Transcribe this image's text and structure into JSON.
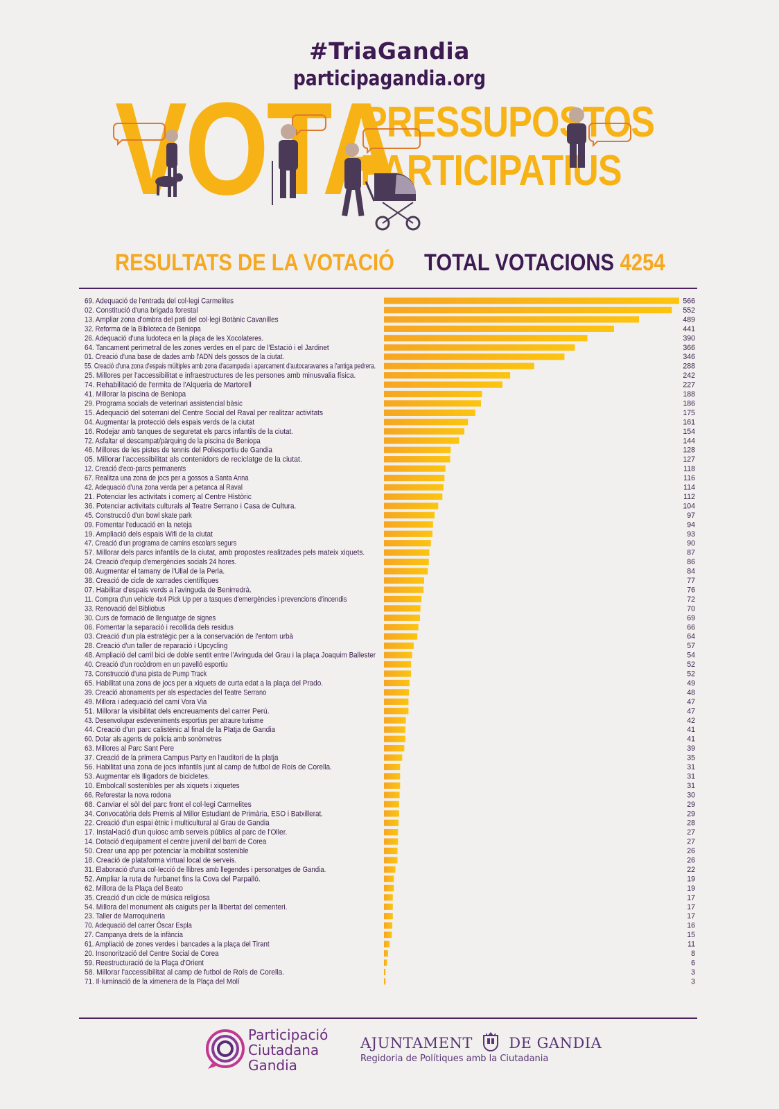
{
  "header": {
    "hashtag": "#TriaGandia",
    "website": "participagandia.org",
    "vota": "VOTA",
    "pp_line1": "PRESSUPOSTOS",
    "pp_line2": "PARTICIPATIUS"
  },
  "results": {
    "title": "RESULTATS DE LA VOTACIÓ",
    "total_label": "TOTAL VOTACIONS",
    "total_value": "4254"
  },
  "colors": {
    "bar_start": "#f6a623",
    "bar_end": "#fcc40f",
    "text_dark": "#3d1a52",
    "accent": "#f7b216"
  },
  "chart_data": {
    "type": "bar",
    "orientation": "horizontal",
    "xlim": [
      0,
      566
    ],
    "grid": false,
    "categories": [
      "69. Adequació de l'entrada del col·legi Carmelites",
      "02. Constitució d'una brigada forestal",
      "13. Ampliar zona d'ombra del pati del col·legi Botànic Cavanilles",
      "32. Reforma de la Biblioteca de Beniopa",
      "26. Adequació d'una ludoteca en la plaça de les Xocolateres.",
      "64. Tancament perimetral de les zones verdes en el parc de l'Estació i el Jardinet",
      "01. Creació d'una base de dades amb l'ADN dels gossos de la ciutat.",
      "55. Creació d'una zona d'espais múltiples amb zona d'acampada i aparcament d'autocaravanes a l'antiga pedrera.",
      "25. Millores per l'accessibilitat e infraestructures de les persones amb minusvalia física.",
      "74. Rehabilitació de l'ermita de l'Alqueria de Martorell",
      "41. Millorar la piscina de Beniopa",
      "29. Programa socials de veterinari assistencial bàsic",
      "15. Adequació del soterrani del Centre Social del Raval per realitzar activitats",
      "04. Augmentar la protecció dels espais verds de la ciutat",
      "16. Rodejar amb tanques de seguretat els parcs infantils de la ciutat.",
      "72. Asfaltar el descampat/pàrquing de la piscina de Beniopa",
      "46. Millores de les pistes de tennis del Poliesportiu de Gandia",
      "05. Millorar l'accessibilitat als contenidors de reciclatge de la ciutat.",
      "12. Creació d'eco-parcs permanents",
      "67. Realitza una zona de jocs per a gossos a Santa Anna",
      "42. Adequació d'una zona verda per a petanca al Raval",
      "21. Potenciar les activitats i comerç al Centre Històric",
      "36. Potenciar activitats culturals al Teatre Serrano i Casa de Cultura.",
      "45. Construcció d'un bowl skate park",
      "09. Fomentar l'educació en la neteja",
      "19. Ampliació dels espais Wifi de la ciutat",
      "47. Creació d'un programa de camins escolars segurs",
      "57. Millorar dels parcs infantils de la ciutat, amb propostes realitzades pels mateix xiquets.",
      "24. Creació d'equip d'emergències socials 24 hores.",
      "08. Augmentar el tamany de l'Ullal de la Perla.",
      "38. Creació de cicle de xarrades científiques",
      "07. Habilitar d'espais verds a l'avinguda de Benirredrà.",
      "11. Compra d'un vehicle 4x4 Pick Up per a tasques d'emergències i prevencions d'incendis",
      "33. Renovació del Bibliobus",
      "30. Curs de formació de llenguatge de signes",
      "06. Fomentar la separació i recollida dels residus",
      "03. Creació d'un pla estratègic per a la conservación de l'entorn urbà",
      "28. Creació d'un taller de reparació i Upcycling",
      "48. Ampliació del carril bici de doble sentit entre l'Avinguda del Grau i la plaça Joaquim Ballester",
      "40. Creació d'un rocòdrom en un pavelló esportiu",
      "73. Construcció d'una pista de Pump Track",
      "65. Habilitat una zona de jocs per a xiquets de curta edat a la plaça del Prado.",
      "39. Creació abonaments per als espectacles del Teatre Serrano",
      "49. Millora i adequació del camí Vora Via",
      "51. Millorar la visibilitat dels encreuaments del carrer Perú.",
      "43. Desenvolupar esdeveniments esportius per atraure turisme",
      "44. Creació d'un parc calistènic al final de la Platja de Gandia",
      "60. Dotar als agents de policia amb sonòmetres",
      "63. Millores al Parc Sant Pere",
      "37. Creació de la primera Campus Party en l'auditori de la platja",
      "56. Habilitat una zona de jocs infantils junt al camp de futbol de Roís de Corella.",
      "53. Augmentar els lligadors de bicicletes.",
      "10. Embolcall sostenibles per als xiquets i xiquetes",
      "66. Reforestar la nova rodona",
      "68. Canviar el sòl del parc front el col·legi Carmelites",
      "34. Convocatòria dels Premis al Millor Estudiant de Primària, ESO i Batxillerat.",
      "22. Creació d'un espai ètnic i multicultural al Grau de Gandia",
      "17. Instal•lació d'un quiosc amb serveis públics al parc de l'Oller.",
      "14. Dotació d'equipament el centre juvenil del barri de Corea",
      "50. Crear una app per potenciar la mobilitat sostenible",
      "18. Creació de plataforma virtual local de serveis.",
      "31. Elaboració d'una col·lecció de llibres amb llegendes i personatges de Gandia.",
      "52. Ampliar la ruta de l'urbanet fins la Cova del Parpalló.",
      "62. Millora de la Plaça del Beato",
      "35. Creació d'un cicle de música religiosa",
      "54. Millora del monument als caiguts per la llibertat del cementeri.",
      "23. Taller de Marroquineria",
      "70. Adequació del carrer Òscar Espla",
      "27. Campanya drets de la infància",
      "61. Ampliació de zones verdes i bancades a la plaça del Tirant",
      "20. Insonorització del Centre Social de Corea",
      "59. Reestructuració de la Plaça d'Orient",
      "58. Millorar l'accessibilitat al camp de futbol de Roís de Corella.",
      "71. Il·luminació de la ximenera de la Plaça del Molí"
    ],
    "values": [
      566,
      552,
      489,
      441,
      390,
      366,
      346,
      288,
      242,
      227,
      188,
      186,
      175,
      161,
      154,
      144,
      128,
      127,
      118,
      116,
      114,
      112,
      104,
      97,
      94,
      93,
      90,
      87,
      86,
      84,
      77,
      76,
      72,
      70,
      69,
      66,
      64,
      57,
      54,
      52,
      52,
      49,
      48,
      47,
      47,
      42,
      41,
      41,
      39,
      35,
      31,
      31,
      31,
      30,
      29,
      29,
      28,
      27,
      27,
      26,
      26,
      22,
      19,
      19,
      17,
      17,
      17,
      16,
      15,
      11,
      8,
      6,
      3,
      3
    ]
  },
  "footer": {
    "left_line1": "Participació",
    "left_line2": "Ciutadana",
    "left_line3": "Gandia",
    "right_title_a": "AJUNTAMENT",
    "right_title_b": "DE GANDIA",
    "right_subtitle": "Regidoria de Polítiques amb la Ciutadania"
  }
}
